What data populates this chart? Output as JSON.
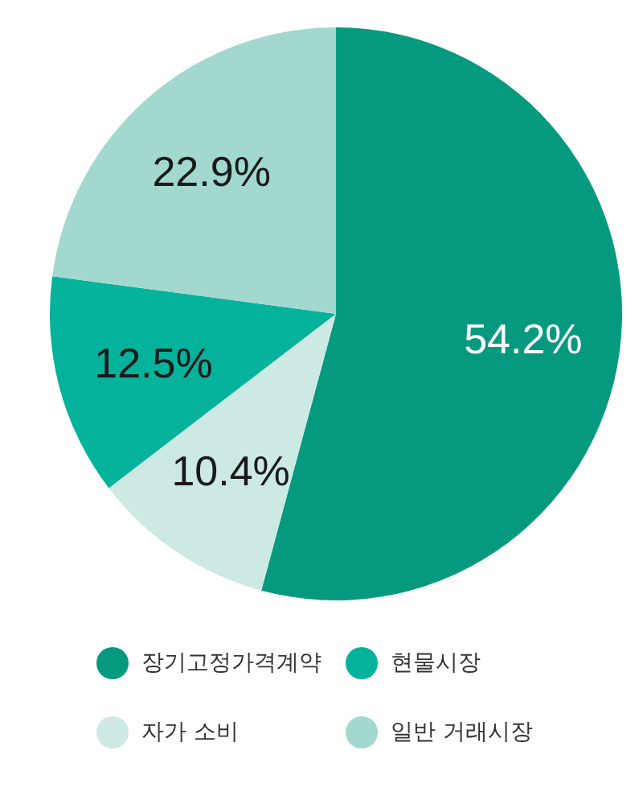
{
  "chart_data": {
    "type": "pie",
    "categories": [
      "장기고정가격계약",
      "자가 소비",
      "현물시장",
      "일반 거래시장"
    ],
    "values": [
      54.2,
      10.4,
      12.5,
      22.9
    ],
    "colors": [
      "#059a80",
      "#cde9e3",
      "#05b29c",
      "#a2d8ce"
    ],
    "value_labels": [
      "54.2%",
      "10.4%",
      "12.5%",
      "22.9%"
    ],
    "legend": "bottom"
  }
}
